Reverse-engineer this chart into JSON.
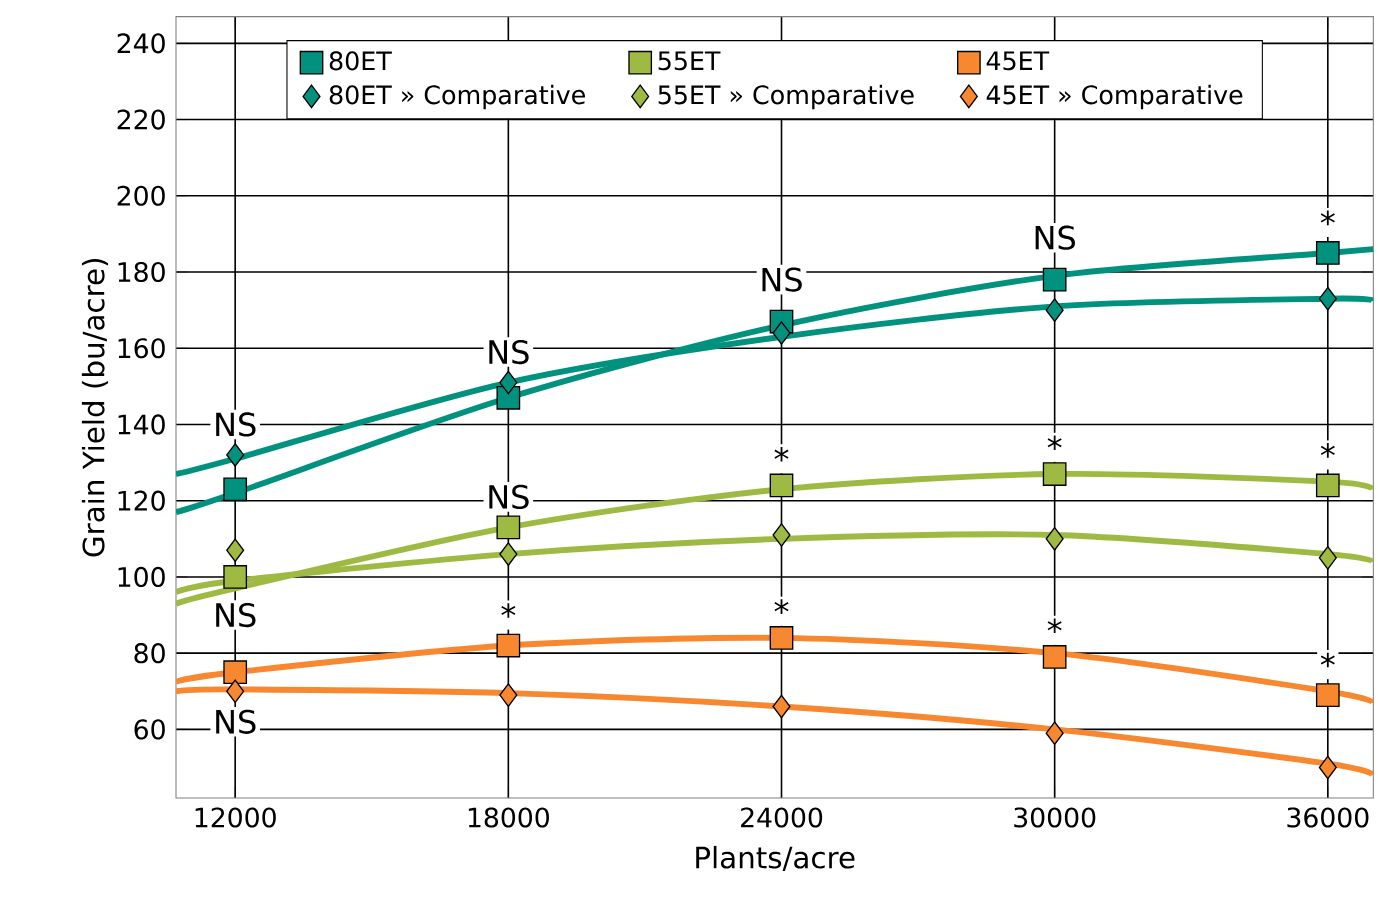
{
  "chart_data": {
    "type": "scatter",
    "xlabel": "Plants/acre",
    "ylabel": "Grain Yield (bu/acre)",
    "xlim": [
      10700,
      37000
    ],
    "ylim": [
      42,
      247
    ],
    "xticks": [
      12000,
      18000,
      24000,
      30000,
      36000
    ],
    "yticks": [
      60,
      80,
      100,
      120,
      140,
      160,
      180,
      200,
      220,
      240
    ],
    "grid": true,
    "legend": "top",
    "series": [
      {
        "name": "80ET",
        "color": "#00927f",
        "marker": "square",
        "x": [
          12000,
          18000,
          24000,
          30000,
          36000
        ],
        "values": [
          123,
          147,
          167,
          178,
          185
        ]
      },
      {
        "name": "55ET",
        "color": "#9fba43",
        "marker": "square",
        "x": [
          12000,
          18000,
          24000,
          30000,
          36000
        ],
        "values": [
          100,
          113,
          124,
          127,
          124
        ]
      },
      {
        "name": "45ET",
        "color": "#f7882f",
        "marker": "square",
        "x": [
          12000,
          18000,
          24000,
          30000,
          36000
        ],
        "values": [
          75,
          82,
          84,
          79,
          69
        ]
      },
      {
        "name": "80ET » Comparative",
        "color": "#00927f",
        "marker": "diamond",
        "x": [
          12000,
          18000,
          24000,
          30000,
          36000
        ],
        "values": [
          132,
          151,
          164,
          170,
          173
        ]
      },
      {
        "name": "55ET » Comparative",
        "color": "#9fba43",
        "marker": "diamond",
        "x": [
          12000,
          18000,
          24000,
          30000,
          36000
        ],
        "values": [
          107,
          106,
          111,
          110,
          105
        ]
      },
      {
        "name": "45ET » Comparative",
        "color": "#f7882f",
        "marker": "diamond",
        "x": [
          12000,
          18000,
          24000,
          30000,
          36000
        ],
        "values": [
          70,
          69,
          66,
          59,
          50
        ]
      },
      {
        "type": "line",
        "color": "#00927f",
        "x": [
          10700,
          12000,
          18000,
          24000,
          30000,
          36000,
          37000
        ],
        "values": [
          117,
          122,
          147,
          166,
          179,
          185,
          186
        ]
      },
      {
        "type": "line",
        "color": "#00927f",
        "x": [
          10700,
          12000,
          18000,
          24000,
          30000,
          36000,
          37000
        ],
        "values": [
          127,
          131,
          151,
          163,
          171,
          173,
          172.5
        ]
      },
      {
        "type": "line",
        "color": "#9fba43",
        "x": [
          10700,
          12000,
          18000,
          24000,
          30000,
          36000,
          37000
        ],
        "values": [
          93,
          97,
          113,
          123,
          127,
          125,
          123
        ]
      },
      {
        "type": "line",
        "color": "#9fba43",
        "x": [
          10700,
          12000,
          18000,
          24000,
          30000,
          36000,
          37000
        ],
        "values": [
          96,
          99,
          106,
          110,
          111,
          106,
          104
        ]
      },
      {
        "type": "line",
        "color": "#f7882f",
        "x": [
          10700,
          12000,
          18000,
          24000,
          30000,
          36000,
          37000
        ],
        "values": [
          72.5,
          75,
          82,
          84,
          80,
          70,
          67
        ]
      },
      {
        "type": "line",
        "color": "#f7882f",
        "x": [
          10700,
          12000,
          18000,
          24000,
          30000,
          36000,
          37000
        ],
        "values": [
          70,
          70.5,
          69.5,
          66,
          60,
          51,
          48
        ]
      }
    ],
    "annotations": [
      {
        "text": "NS",
        "x": 12000,
        "y": 140
      },
      {
        "text": "NS",
        "x": 12000,
        "y": 90
      },
      {
        "text": "NS",
        "x": 12000,
        "y": 62
      },
      {
        "text": "NS",
        "x": 18000,
        "y": 159
      },
      {
        "text": "NS",
        "x": 18000,
        "y": 121
      },
      {
        "text": "*",
        "x": 18000,
        "y": 90
      },
      {
        "text": "NS",
        "x": 24000,
        "y": 178
      },
      {
        "text": "*",
        "x": 24000,
        "y": 131
      },
      {
        "text": "*",
        "x": 24000,
        "y": 91
      },
      {
        "text": "NS",
        "x": 30000,
        "y": 189
      },
      {
        "text": "*",
        "x": 30000,
        "y": 134
      },
      {
        "text": "*",
        "x": 30000,
        "y": 86
      },
      {
        "text": "*",
        "x": 36000,
        "y": 193
      },
      {
        "text": "*",
        "x": 36000,
        "y": 132
      },
      {
        "text": "*",
        "x": 36000,
        "y": 77
      }
    ]
  }
}
